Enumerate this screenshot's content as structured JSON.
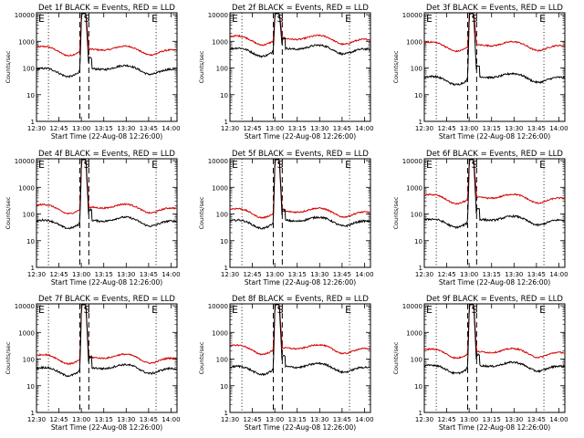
{
  "figure": {
    "x_axis_ticks": [
      "12:30",
      "12:45",
      "13:00",
      "13:15",
      "13:30",
      "13:45",
      "14:00"
    ],
    "x_axis_title": "Start Time (22-Aug-08 12:26:00)",
    "y_axis_title": "Counts/sec",
    "y_axis_ticks": [
      "1",
      "10",
      "100",
      "1000",
      "10000"
    ],
    "marker_labels": [
      "E",
      "S",
      "E"
    ],
    "colors": {
      "events": "#000000",
      "lld": "#d40000",
      "frame": "#000000"
    }
  },
  "chart_data": [
    {
      "title": "Det 1f BLACK = Events, RED = LLD",
      "type": "line",
      "events_base": 90,
      "lld_base": 480,
      "peak": 13000
    },
    {
      "title": "Det 2f BLACK = Events, RED = LLD",
      "type": "line",
      "events_base": 520,
      "lld_base": 1200,
      "peak": 13000
    },
    {
      "title": "Det 3f BLACK = Events, RED = LLD",
      "type": "line",
      "events_base": 45,
      "lld_base": 700,
      "peak": 13000
    },
    {
      "title": "Det 4f BLACK = Events, RED = LLD",
      "type": "line",
      "events_base": 55,
      "lld_base": 170,
      "peak": 13000
    },
    {
      "title": "Det 5f BLACK = Events, RED = LLD",
      "type": "line",
      "events_base": 55,
      "lld_base": 120,
      "peak": 13000
    },
    {
      "title": "Det 6f BLACK = Events, RED = LLD",
      "type": "line",
      "events_base": 60,
      "lld_base": 400,
      "peak": 13000
    },
    {
      "title": "Det 7f BLACK = Events, RED = LLD",
      "type": "line",
      "events_base": 45,
      "lld_base": 110,
      "peak": 13000
    },
    {
      "title": "Det 8f BLACK = Events, RED = LLD",
      "type": "line",
      "events_base": 50,
      "lld_base": 250,
      "peak": 13000
    },
    {
      "title": "Det 9f BLACK = Events, RED = LLD",
      "type": "line",
      "events_base": 55,
      "lld_base": 180,
      "peak": 13000
    }
  ]
}
